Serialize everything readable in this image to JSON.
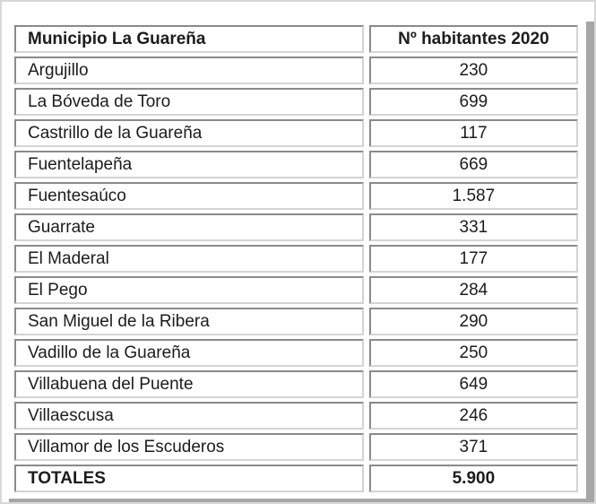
{
  "table": {
    "columns": [
      "Municipio La Guareña",
      "Nº habitantes 2020"
    ],
    "rows": [
      {
        "municipality": "Argujillo",
        "habitants": "230"
      },
      {
        "municipality": "La Bóveda de Toro",
        "habitants": "699"
      },
      {
        "municipality": "Castrillo de la Guareña",
        "habitants": "117"
      },
      {
        "municipality": "Fuentelapeña",
        "habitants": "669"
      },
      {
        "municipality": "Fuentesaúco",
        "habitants": "1.587"
      },
      {
        "municipality": "Guarrate",
        "habitants": "331"
      },
      {
        "municipality": "El Maderal",
        "habitants": "177"
      },
      {
        "municipality": "El Pego",
        "habitants": "284"
      },
      {
        "municipality": "San Miguel de la Ribera",
        "habitants": "290"
      },
      {
        "municipality": "Vadillo de la Guareña",
        "habitants": "250"
      },
      {
        "municipality": "Villabuena del Puente",
        "habitants": "649"
      },
      {
        "municipality": "Villaescusa",
        "habitants": "246"
      },
      {
        "municipality": "Villamor de los Escuderos",
        "habitants": "371"
      }
    ],
    "totals": {
      "label": "TOTALES",
      "value": "5.900"
    }
  },
  "colors": {
    "cell_border_dark": "#8a8a8a",
    "cell_border_light": "#d4d4d4",
    "table_shadow": "#a6a6a6",
    "page_frame": "#d8d8d8",
    "text": "#1c1c1c",
    "background": "#ffffff"
  }
}
